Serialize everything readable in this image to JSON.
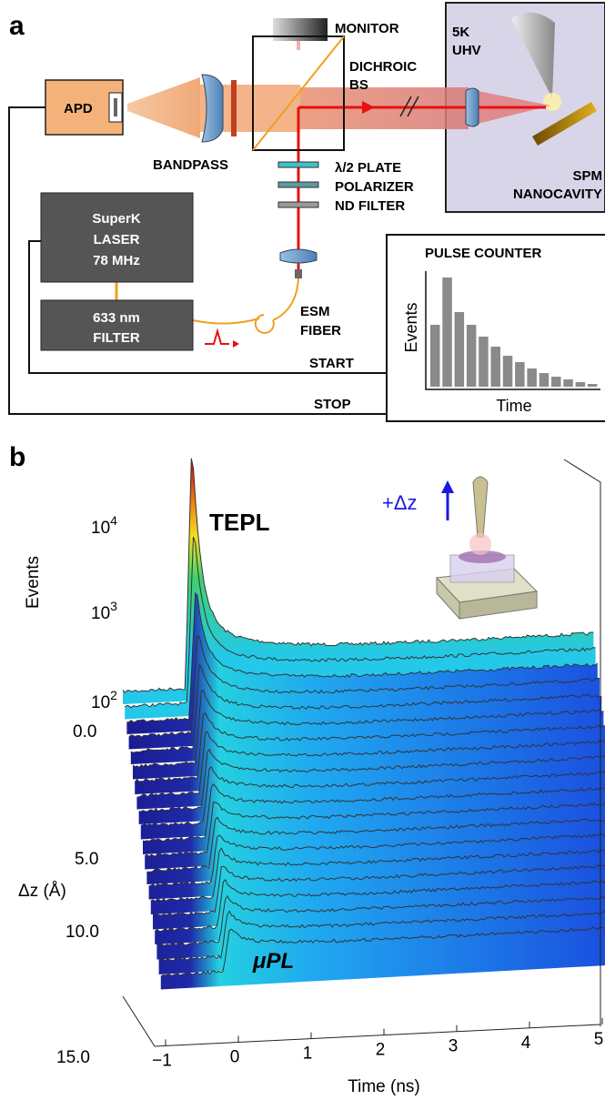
{
  "panel_a": {
    "label": "a",
    "monitor": "MONITOR",
    "chamber": [
      "5K",
      "UHV"
    ],
    "nanocavity": [
      "SPM",
      "NANOCAVITY"
    ],
    "apd": "APD",
    "dichroic": [
      "DICHROIC",
      "BS"
    ],
    "bandpass": "BANDPASS",
    "optics": [
      "λ/2 PLATE",
      "POLARIZER",
      "ND FILTER"
    ],
    "laser": [
      "SuperK",
      "LASER",
      "78 MHz"
    ],
    "filter": [
      "633 nm",
      "FILTER"
    ],
    "fiber": [
      "ESM",
      "FIBER"
    ],
    "start": "START",
    "stop": "STOP",
    "pulse_counter": {
      "title": "PULSE COUNTER",
      "y_label": "Events",
      "x_label": "Time",
      "values": [
        68,
        120,
        82,
        68,
        55,
        44,
        34,
        27,
        20,
        15,
        11,
        8,
        5,
        3
      ]
    }
  },
  "panel_b": {
    "label": "b",
    "y_label": "Events",
    "event_ticks": [
      {
        "base": "10",
        "exp": "4"
      },
      {
        "base": "10",
        "exp": "3"
      },
      {
        "base": "10",
        "exp": "2"
      }
    ],
    "dz_label": "Δz (Å)",
    "dz_ticks": [
      "0.0",
      "5.0",
      "10.0",
      "15.0"
    ],
    "x_label": "Time (ns)",
    "time_ticks": [
      "−1",
      "0",
      "1",
      "2",
      "3",
      "4",
      "5"
    ],
    "tepl": "TEPL",
    "mupl": "μPL",
    "inset": "+Δz"
  }
}
